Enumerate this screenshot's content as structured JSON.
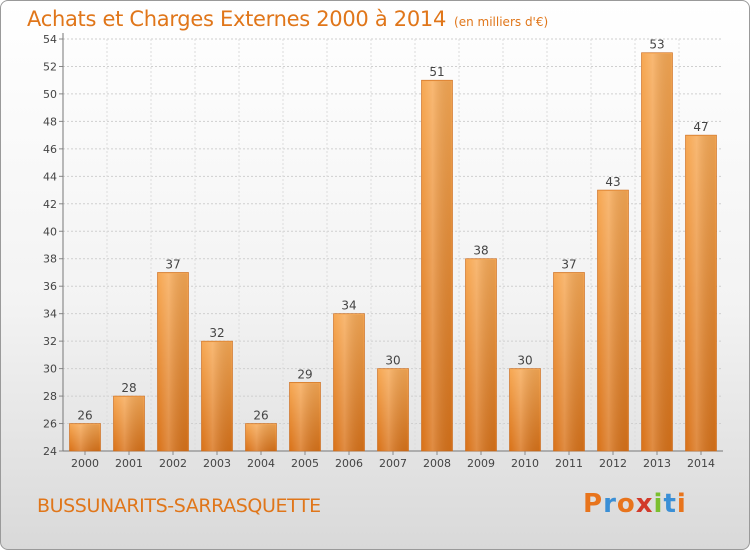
{
  "header": {
    "title": "Achats et Charges Externes 2000 à 2014",
    "unit": "(en milliers d'€)"
  },
  "footer": {
    "commune": "BUSSUNARITS-SARRASQUETTE",
    "logo": "Proxiti"
  },
  "colors": {
    "accent": "#e0761a",
    "bar_light": "#f7a955",
    "bar_dark": "#d9731a",
    "logo_letters": [
      "#e8741c",
      "#3a8fd6",
      "#e8741c",
      "#d23a2a",
      "#7bbf2f",
      "#3a8fd6",
      "#e8741c"
    ]
  },
  "chart_data": {
    "type": "bar",
    "categories": [
      "2000",
      "2001",
      "2002",
      "2003",
      "2004",
      "2005",
      "2006",
      "2007",
      "2008",
      "2009",
      "2010",
      "2011",
      "2012",
      "2013",
      "2014"
    ],
    "values": [
      26,
      28,
      37,
      32,
      26,
      29,
      34,
      30,
      51,
      38,
      30,
      37,
      43,
      53,
      47
    ],
    "title": "Achats et Charges Externes 2000 à 2014",
    "xlabel": "",
    "ylabel": "",
    "ylim": [
      24,
      54
    ],
    "yticks": [
      24,
      26,
      28,
      30,
      32,
      34,
      36,
      38,
      40,
      42,
      44,
      46,
      48,
      50,
      52,
      54
    ],
    "grid": true,
    "data_labels": true
  }
}
